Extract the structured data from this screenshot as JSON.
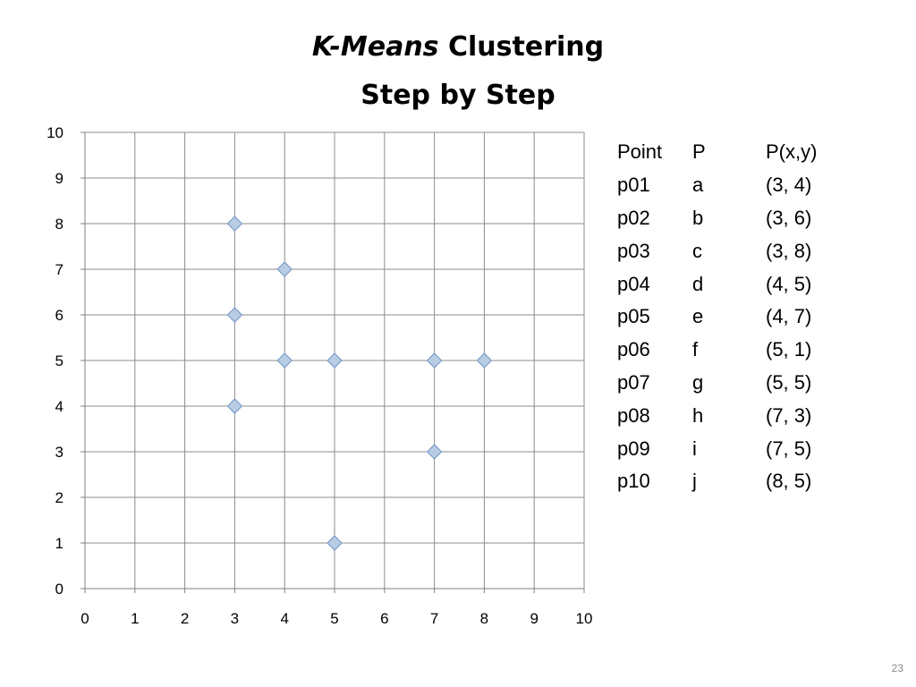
{
  "slide": {
    "title_italic": "K-Means",
    "title_rest": " Clustering",
    "subtitle": "Step by Step",
    "page_number": "23"
  },
  "table": {
    "headers": [
      "Point",
      "P",
      "P(x,y)"
    ],
    "rows": [
      [
        "p01",
        "a",
        "(3, 4)"
      ],
      [
        "p02",
        "b",
        "(3, 6)"
      ],
      [
        "p03",
        "c",
        "(3, 8)"
      ],
      [
        "p04",
        "d",
        "(4, 5)"
      ],
      [
        "p05",
        "e",
        "(4, 7)"
      ],
      [
        "p06",
        "f",
        "(5, 1)"
      ],
      [
        "p07",
        "g",
        "(5, 5)"
      ],
      [
        "p08",
        "h",
        "(7, 3)"
      ],
      [
        "p09",
        "i",
        "(7, 5)"
      ],
      [
        "p10",
        "j",
        "(8, 5)"
      ]
    ]
  },
  "chart_data": {
    "type": "scatter",
    "title": "",
    "xlabel": "",
    "ylabel": "",
    "xlim": [
      0,
      10
    ],
    "ylim": [
      0,
      10
    ],
    "xticks": [
      0,
      1,
      2,
      3,
      4,
      5,
      6,
      7,
      8,
      9,
      10
    ],
    "yticks": [
      0,
      1,
      2,
      3,
      4,
      5,
      6,
      7,
      8,
      9,
      10
    ],
    "grid": true,
    "marker": "diamond",
    "marker_fill": "#b8cce4",
    "marker_stroke": "#6f93c4",
    "series": [
      {
        "points": [
          {
            "x": 3,
            "y": 4
          },
          {
            "x": 3,
            "y": 6
          },
          {
            "x": 3,
            "y": 8
          },
          {
            "x": 4,
            "y": 5
          },
          {
            "x": 4,
            "y": 7
          },
          {
            "x": 5,
            "y": 1
          },
          {
            "x": 5,
            "y": 5
          },
          {
            "x": 7,
            "y": 3
          },
          {
            "x": 7,
            "y": 5
          },
          {
            "x": 8,
            "y": 5
          }
        ]
      }
    ]
  }
}
